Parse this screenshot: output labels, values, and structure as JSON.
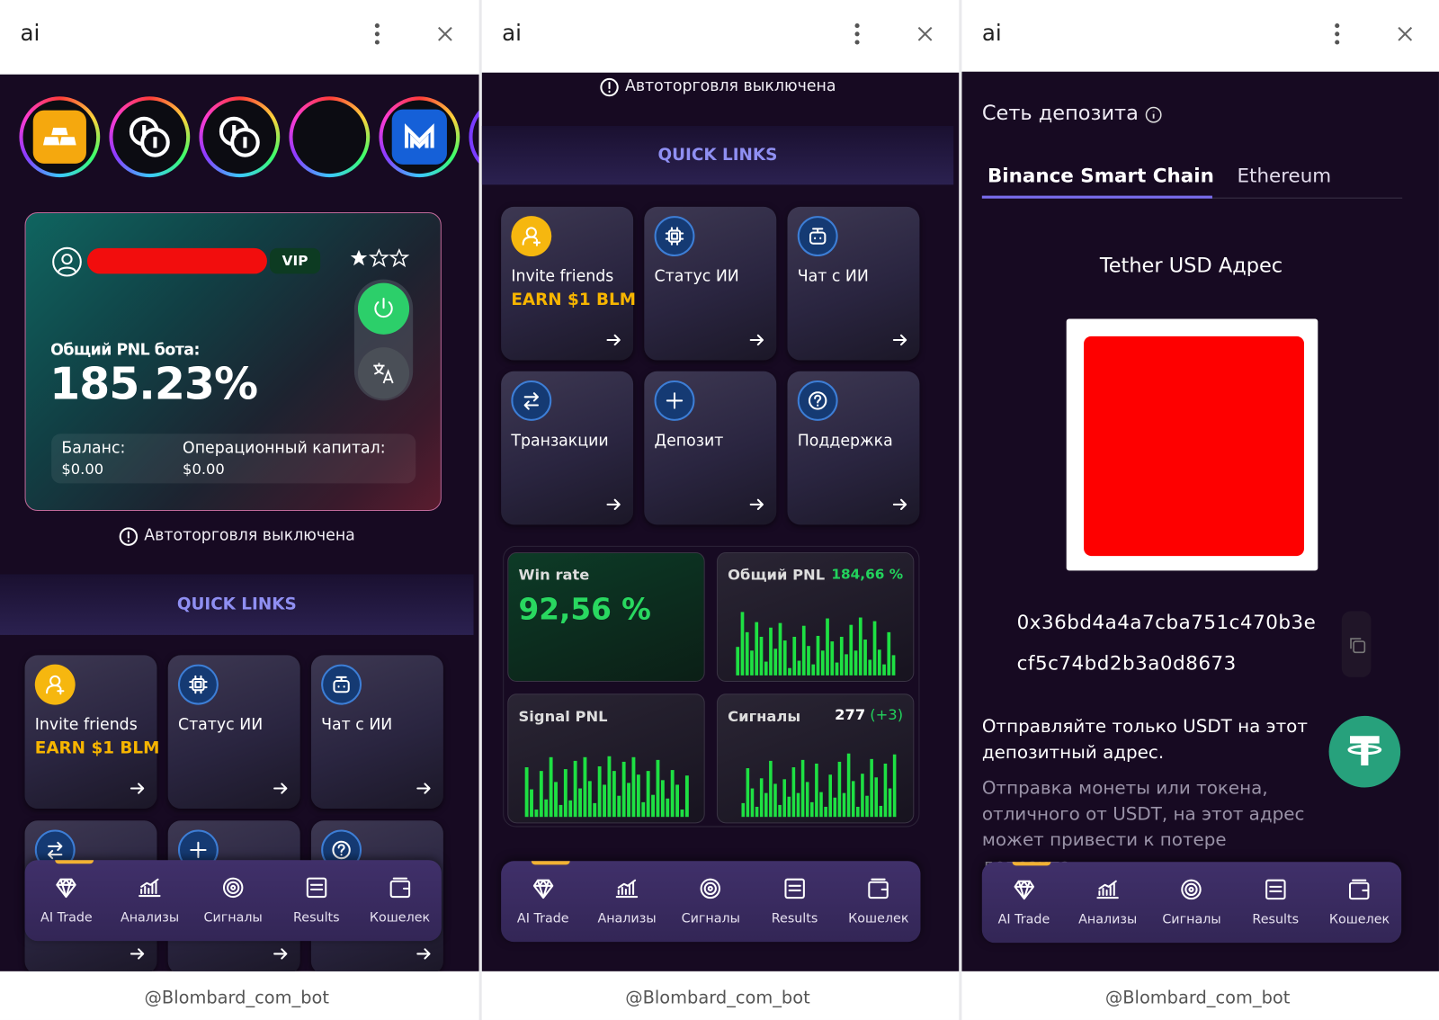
{
  "panels": [
    {
      "header": "ai",
      "bot_card": {
        "badge": "VIP",
        "pnl_label": "Общий PNL бота:",
        "pnl_value": "185.23%",
        "balance_label": "Баланс:",
        "balance_value": "$0.00",
        "capital_label": "Операционный капитал:",
        "capital_value": "$0.00"
      },
      "status": "Автоторговля выключена",
      "quick_links": {
        "title": "QUICK LINKS",
        "tiles": [
          {
            "label": "Invite friends",
            "note": "EARN $1 BLM"
          },
          {
            "label": "Статус ИИ"
          },
          {
            "label": "Чат с ИИ"
          }
        ]
      },
      "nav": [
        "AI Trade",
        "Анализы",
        "Сигналы",
        "Results",
        "Кошелек"
      ],
      "footer": "@Blombard_com_bot"
    },
    {
      "header": "ai",
      "status": "Автоторговля выключена",
      "quick_links": {
        "title": "QUICK LINKS",
        "tiles": [
          {
            "label": "Invite friends",
            "note": "EARN $1 BLM"
          },
          {
            "label": "Статус ИИ"
          },
          {
            "label": "Чат с ИИ"
          },
          {
            "label": "Транзакции"
          },
          {
            "label": "Депозит"
          },
          {
            "label": "Поддержка"
          }
        ]
      },
      "stats": {
        "win_rate": {
          "label": "Win rate",
          "value": "92,56 %"
        },
        "total_pnl": {
          "label": "Общий PNL",
          "value": "184,66 %"
        },
        "signal_pnl": {
          "label": "Signal PNL"
        },
        "signals": {
          "label": "Сигналы",
          "value": "277",
          "change": "(+3)"
        }
      },
      "nav": [
        "AI Trade",
        "Анализы",
        "Сигналы",
        "Results",
        "Кошелек"
      ],
      "footer": "@Blombard_com_bot"
    },
    {
      "header": "ai",
      "deposit": {
        "title": "Сеть депозита",
        "tabs": [
          "Binance Smart Chain",
          "Ethereum"
        ],
        "address_title": "Tether USD Адрес",
        "address_lines": [
          "0x36bd4a4a7cba751c470b3e",
          "cf5c74bd2b3a0d8673"
        ],
        "warning": "Отправляйте только USDT на этот депозитный адрес.",
        "note": "Отправка монеты или токена, отличного от USDT, на этот адрес может привести к потере депозита."
      },
      "nav": [
        "AI Trade",
        "Анализы",
        "Сигналы",
        "Results",
        "Кошелек"
      ],
      "footer": "@Blombard_com_bot"
    }
  ]
}
